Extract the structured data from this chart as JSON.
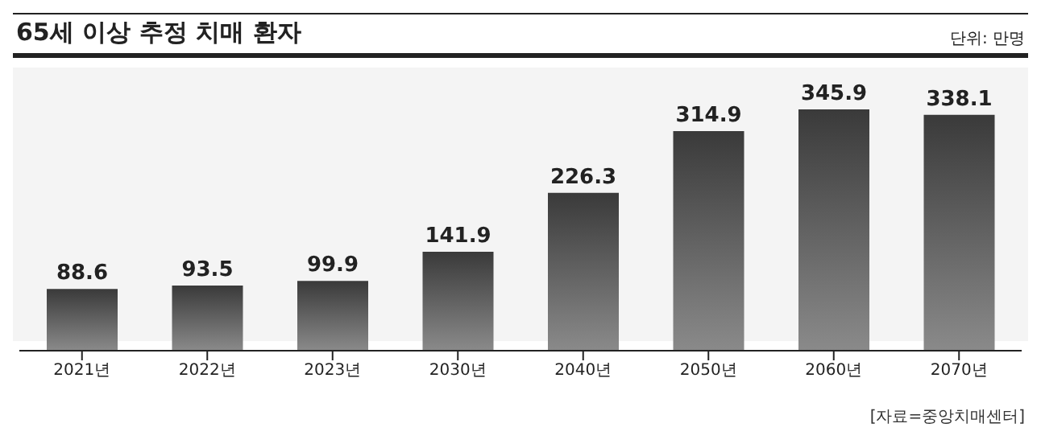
{
  "chart_data": {
    "type": "bar",
    "title": "65세 이상 추정 치매 환자",
    "categories": [
      "2021년",
      "2022년",
      "2023년",
      "2030년",
      "2040년",
      "2050년",
      "2060년",
      "2070년"
    ],
    "values": [
      88.6,
      93.5,
      99.9,
      141.9,
      226.3,
      314.9,
      345.9,
      338.1
    ],
    "color": "#3a3a3a",
    "data_labels": true,
    "tick_labels": "x",
    "annotations": [
      "단위: 만명",
      "[자료=중앙치매센터]"
    ]
  }
}
